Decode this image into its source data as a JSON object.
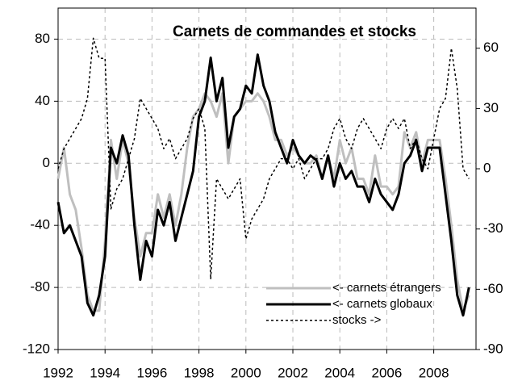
{
  "chart_data": {
    "type": "line",
    "title": "Carnets de commandes et stocks",
    "x": [
      1992,
      1992.25,
      1992.5,
      1992.75,
      1993,
      1993.25,
      1993.5,
      1993.75,
      1994,
      1994.25,
      1994.5,
      1994.75,
      1995,
      1995.25,
      1995.5,
      1995.75,
      1996,
      1996.25,
      1996.5,
      1996.75,
      1997,
      1997.25,
      1997.5,
      1997.75,
      1998,
      1998.25,
      1998.5,
      1998.75,
      1999,
      1999.25,
      1999.5,
      1999.75,
      2000,
      2000.25,
      2000.5,
      2000.75,
      2001,
      2001.25,
      2001.5,
      2001.75,
      2002,
      2002.25,
      2002.5,
      2002.75,
      2003,
      2003.25,
      2003.5,
      2003.75,
      2004,
      2004.25,
      2004.5,
      2004.75,
      2005,
      2005.25,
      2005.5,
      2005.75,
      2006,
      2006.25,
      2006.5,
      2006.75,
      2007,
      2007.25,
      2007.5,
      2007.75,
      2008,
      2008.25,
      2008.5,
      2008.75,
      2009,
      2009.25,
      2009.5
    ],
    "series": [
      {
        "name": "<- carnets étrangers",
        "color": "#bfbfbf",
        "style": "solid",
        "axis": "y",
        "values": [
          -10,
          10,
          -20,
          -30,
          -55,
          -85,
          -95,
          -95,
          -50,
          15,
          -10,
          15,
          0,
          -35,
          -60,
          -45,
          -45,
          -20,
          -35,
          -20,
          -40,
          -20,
          10,
          30,
          35,
          45,
          40,
          30,
          45,
          0,
          30,
          35,
          40,
          40,
          45,
          40,
          30,
          15,
          15,
          5,
          10,
          5,
          0,
          0,
          5,
          -10,
          5,
          -10,
          15,
          0,
          10,
          -10,
          -10,
          -20,
          5,
          -15,
          -15,
          -20,
          -15,
          20,
          10,
          20,
          0,
          15,
          15,
          15,
          -10,
          -40,
          -75,
          -95,
          -85
        ]
      },
      {
        "name": "<- carnets globaux",
        "color": "#000000",
        "style": "solid",
        "axis": "y",
        "values": [
          -25,
          -45,
          -40,
          -50,
          -60,
          -90,
          -98,
          -85,
          -60,
          10,
          0,
          18,
          5,
          -40,
          -75,
          -50,
          -60,
          -30,
          -40,
          -25,
          -50,
          -35,
          -20,
          -5,
          30,
          40,
          68,
          40,
          55,
          10,
          30,
          35,
          50,
          45,
          70,
          50,
          40,
          20,
          10,
          0,
          15,
          5,
          0,
          5,
          2,
          -10,
          5,
          -15,
          0,
          -10,
          -5,
          -15,
          -15,
          -25,
          -10,
          -20,
          -25,
          -30,
          -20,
          0,
          5,
          15,
          -5,
          10,
          10,
          10,
          -20,
          -50,
          -85,
          -98,
          -80
        ]
      },
      {
        "name": "stocks ->",
        "color": "#000000",
        "style": "dotted",
        "axis": "y2",
        "values": [
          0,
          10,
          15,
          20,
          25,
          35,
          65,
          55,
          55,
          -20,
          -10,
          -5,
          5,
          15,
          35,
          30,
          25,
          20,
          10,
          15,
          5,
          10,
          15,
          25,
          30,
          20,
          -55,
          -5,
          -10,
          -15,
          -10,
          -5,
          -35,
          -25,
          -20,
          -15,
          -5,
          0,
          5,
          5,
          0,
          5,
          -5,
          0,
          5,
          5,
          10,
          20,
          25,
          15,
          10,
          20,
          25,
          20,
          15,
          10,
          20,
          25,
          20,
          25,
          10,
          15,
          5,
          0,
          15,
          30,
          35,
          60,
          40,
          0,
          -5
        ]
      }
    ],
    "xlim": [
      1992,
      2009.8
    ],
    "xticks": [
      1992,
      1994,
      1996,
      1998,
      2000,
      2002,
      2004,
      2006,
      2008
    ],
    "ylim": [
      -120,
      100
    ],
    "yticks": [
      -120,
      -80,
      -40,
      0,
      40,
      80
    ],
    "y2lim": [
      -90,
      80
    ],
    "y2ticks": [
      -90,
      -60,
      -30,
      0,
      30,
      60
    ],
    "grid": true,
    "legend": "lower right"
  }
}
